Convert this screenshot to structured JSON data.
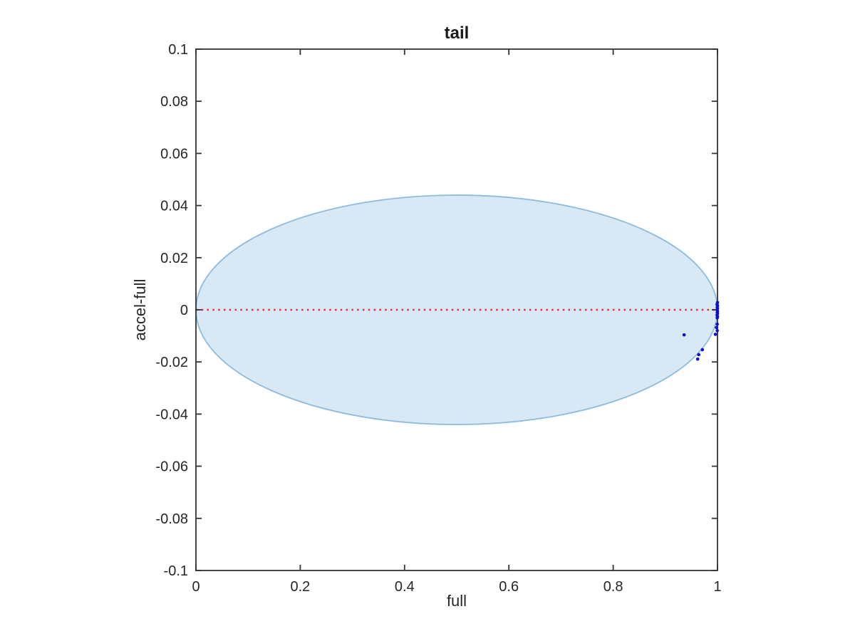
{
  "figure": {
    "title": "tail",
    "xlabel": "full",
    "ylabel": "accel-full"
  },
  "chart_data": {
    "type": "scatter",
    "title": "tail",
    "xlabel": "full",
    "ylabel": "accel-full",
    "xlim": [
      0,
      1
    ],
    "ylim": [
      -0.1,
      0.1
    ],
    "xticks": [
      0,
      0.2,
      0.4,
      0.6,
      0.8,
      1
    ],
    "xtick_labels": [
      "0",
      "0.2",
      "0.4",
      "0.6",
      "0.8",
      "1"
    ],
    "yticks": [
      0.1,
      0.08,
      0.06,
      0.04,
      0.02,
      0,
      -0.02,
      -0.04,
      -0.06,
      -0.08,
      -0.1
    ],
    "ytick_labels": [
      "0.1",
      "0.08",
      "0.06",
      "0.04",
      "0.02",
      "0",
      "-0.02",
      "-0.04",
      "-0.06",
      "-0.08",
      "-0.1"
    ],
    "grid": false,
    "box": true,
    "tick_direction": "in",
    "axis_color": "#333333",
    "envelope_ellipse": {
      "cx": 0.5,
      "cy": 0,
      "rx": 0.5,
      "ry": 0.044,
      "fill": "#d9e8f5",
      "stroke": "#8cbcdd"
    },
    "zero_line": {
      "y": 0,
      "color": "#e8262c",
      "style": "dotted"
    },
    "series": [
      {
        "name": "tail-probability-points",
        "marker": "point",
        "color": "#0d0dd3",
        "points": [
          [
            1.0,
            0.0028
          ],
          [
            0.9992,
            0.0021
          ],
          [
            1.0,
            0.0016
          ],
          [
            0.9995,
            0.001
          ],
          [
            1.0,
            0.0005
          ],
          [
            0.9993,
            0.0
          ],
          [
            1.0,
            -0.0005
          ],
          [
            0.9996,
            -0.001
          ],
          [
            1.0,
            -0.0015
          ],
          [
            0.9992,
            -0.002
          ],
          [
            1.0,
            -0.0026
          ],
          [
            0.9995,
            -0.0031
          ],
          [
            0.9995,
            -0.0055
          ],
          [
            0.998,
            -0.0068
          ],
          [
            0.9995,
            -0.008
          ],
          [
            0.996,
            -0.0094
          ],
          [
            0.971,
            -0.0153
          ],
          [
            0.964,
            -0.0172
          ],
          [
            0.962,
            -0.0189
          ],
          [
            0.936,
            -0.0096
          ]
        ]
      }
    ]
  }
}
